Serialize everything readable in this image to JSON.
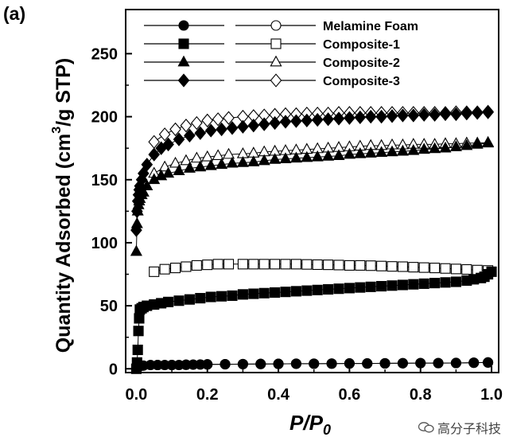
{
  "panel_label": "(a)",
  "watermark": "高分子科技",
  "chart_data": {
    "type": "scatter",
    "xlabel": "P/P",
    "xlabel_sub": "0",
    "ylabel": "Quantity Adsorbed (cm",
    "ylabel_sup": "3",
    "ylabel_tail": "/g STP)",
    "xlim": [
      -0.03,
      1.02
    ],
    "ylim": [
      -3,
      285
    ],
    "xticks": [
      0.0,
      0.2,
      0.4,
      0.6,
      0.8,
      1.0
    ],
    "xtick_labels": [
      "0.0",
      "0.2",
      "0.4",
      "0.6",
      "0.8",
      "1.0"
    ],
    "yticks": [
      0,
      50,
      100,
      150,
      200,
      250
    ],
    "ytick_labels": [
      "0",
      "50",
      "100",
      "150",
      "200",
      "250"
    ],
    "grid": false,
    "legend_position": "top-right",
    "series": [
      {
        "name": "Melamine Foam",
        "marker": "circle",
        "adsorption_x": [
          0.002,
          0.01,
          0.02,
          0.04,
          0.06,
          0.08,
          0.1,
          0.12,
          0.14,
          0.16,
          0.18,
          0.2,
          0.25,
          0.3,
          0.35,
          0.4,
          0.45,
          0.5,
          0.55,
          0.6,
          0.65,
          0.7,
          0.75,
          0.8,
          0.85,
          0.9,
          0.95,
          0.99
        ],
        "adsorption_y": [
          1,
          2,
          2.5,
          3,
          3,
          3,
          3,
          3,
          3.2,
          3.3,
          3.4,
          3.5,
          3.6,
          3.7,
          3.8,
          3.9,
          4,
          4,
          4.1,
          4.2,
          4.2,
          4.3,
          4.4,
          4.5,
          4.5,
          4.6,
          4.8,
          5
        ],
        "desorption_x": [
          0.06,
          0.1,
          0.14,
          0.2,
          0.25,
          0.3,
          0.35,
          0.4,
          0.45,
          0.5,
          0.55,
          0.6,
          0.65,
          0.7,
          0.75,
          0.8,
          0.85,
          0.9,
          0.95,
          0.99
        ],
        "desorption_y": [
          3,
          3,
          3.2,
          3.5,
          3.6,
          3.7,
          3.8,
          3.9,
          4,
          4,
          4.1,
          4.2,
          4.2,
          4.3,
          4.4,
          4.5,
          4.5,
          4.6,
          4.8,
          5
        ]
      },
      {
        "name": "Composite-1",
        "marker": "square",
        "adsorption_x": [
          0.0,
          0.002,
          0.004,
          0.006,
          0.008,
          0.01,
          0.015,
          0.02,
          0.03,
          0.05,
          0.07,
          0.09,
          0.12,
          0.15,
          0.18,
          0.21,
          0.24,
          0.27,
          0.3,
          0.33,
          0.36,
          0.39,
          0.42,
          0.45,
          0.48,
          0.51,
          0.54,
          0.57,
          0.6,
          0.63,
          0.66,
          0.69,
          0.72,
          0.75,
          0.78,
          0.81,
          0.84,
          0.87,
          0.9,
          0.93,
          0.95,
          0.97,
          0.98,
          0.99,
          1.0
        ],
        "adsorption_y": [
          0,
          5,
          15,
          30,
          40,
          47,
          48,
          49,
          50,
          51,
          52,
          53,
          54,
          55,
          56,
          57,
          57.5,
          58,
          59,
          59.5,
          60,
          60.5,
          61,
          61.5,
          62,
          62.5,
          63,
          63.5,
          64,
          64.5,
          65,
          65.5,
          66,
          66.5,
          67,
          67.5,
          68,
          68.5,
          69,
          70,
          71,
          72,
          73,
          75,
          77
        ],
        "desorption_x": [
          0.05,
          0.08,
          0.11,
          0.14,
          0.17,
          0.2,
          0.23,
          0.26,
          0.3,
          0.33,
          0.36,
          0.39,
          0.42,
          0.45,
          0.48,
          0.51,
          0.54,
          0.57,
          0.6,
          0.63,
          0.66,
          0.69,
          0.72,
          0.75,
          0.78,
          0.81,
          0.84,
          0.87,
          0.9,
          0.93,
          0.96,
          0.99
        ],
        "desorption_y": [
          77,
          79,
          80,
          81,
          82,
          82.5,
          83,
          83,
          83,
          83,
          83,
          83,
          83,
          83,
          82.8,
          82.6,
          82.5,
          82.3,
          82,
          82,
          81.8,
          81.5,
          81.2,
          81,
          80.6,
          80.3,
          80,
          79.6,
          79.2,
          78.8,
          78.3,
          78
        ]
      },
      {
        "name": "Composite-2",
        "marker": "triangle",
        "adsorption_x": [
          0.0,
          0.002,
          0.004,
          0.006,
          0.008,
          0.01,
          0.015,
          0.02,
          0.03,
          0.05,
          0.07,
          0.09,
          0.12,
          0.15,
          0.18,
          0.21,
          0.24,
          0.27,
          0.3,
          0.33,
          0.36,
          0.39,
          0.42,
          0.45,
          0.48,
          0.51,
          0.54,
          0.57,
          0.6,
          0.63,
          0.66,
          0.69,
          0.72,
          0.75,
          0.78,
          0.81,
          0.84,
          0.87,
          0.9,
          0.93,
          0.96,
          0.99
        ],
        "adsorption_y": [
          93,
          115,
          125,
          130,
          133,
          135,
          138,
          140,
          145,
          150,
          153,
          155,
          157,
          159,
          160,
          161,
          162,
          163,
          163.5,
          164,
          165,
          166,
          166.5,
          167,
          167.5,
          168,
          168.5,
          169,
          170,
          170.5,
          171,
          171.5,
          172,
          172.5,
          173,
          174,
          174.5,
          175,
          176,
          177,
          178,
          179
        ],
        "desorption_x": [
          0.05,
          0.08,
          0.11,
          0.14,
          0.17,
          0.2,
          0.23,
          0.26,
          0.3,
          0.33,
          0.36,
          0.39,
          0.42,
          0.45,
          0.48,
          0.51,
          0.54,
          0.57,
          0.6,
          0.63,
          0.66,
          0.69,
          0.72,
          0.75,
          0.78,
          0.81,
          0.84,
          0.87,
          0.9,
          0.93,
          0.96,
          0.99
        ],
        "desorption_y": [
          155,
          160,
          163,
          165,
          167,
          168,
          169,
          170,
          170.5,
          171,
          172,
          172.5,
          173,
          173.5,
          174,
          174.5,
          175,
          175.5,
          176,
          176.5,
          177,
          177,
          177.5,
          177.5,
          178,
          178,
          178,
          178.5,
          178.5,
          179,
          179,
          179.5
        ]
      },
      {
        "name": "Composite-3",
        "marker": "diamond",
        "adsorption_x": [
          0.0,
          0.002,
          0.004,
          0.006,
          0.008,
          0.01,
          0.015,
          0.02,
          0.03,
          0.05,
          0.07,
          0.09,
          0.12,
          0.15,
          0.18,
          0.21,
          0.24,
          0.27,
          0.3,
          0.33,
          0.36,
          0.39,
          0.42,
          0.45,
          0.48,
          0.51,
          0.54,
          0.57,
          0.6,
          0.63,
          0.66,
          0.69,
          0.72,
          0.75,
          0.78,
          0.81,
          0.84,
          0.87,
          0.9,
          0.93,
          0.96,
          0.99
        ],
        "adsorption_y": [
          110,
          125,
          133,
          138,
          142,
          145,
          150,
          155,
          162,
          170,
          175,
          178,
          182,
          185,
          187,
          189,
          190,
          191,
          192,
          193,
          194,
          195,
          196,
          196.5,
          197,
          197.5,
          198,
          198.5,
          199,
          199.5,
          200,
          200,
          200.5,
          201,
          201,
          201.5,
          201.5,
          202,
          202,
          202.5,
          203,
          203.5
        ],
        "desorption_x": [
          0.05,
          0.08,
          0.11,
          0.14,
          0.17,
          0.2,
          0.23,
          0.26,
          0.3,
          0.33,
          0.36,
          0.39,
          0.42,
          0.45,
          0.48,
          0.51,
          0.54,
          0.57,
          0.6,
          0.63,
          0.66,
          0.69,
          0.72,
          0.75,
          0.78,
          0.81,
          0.84,
          0.87,
          0.9,
          0.93,
          0.96,
          0.99
        ],
        "desorption_y": [
          180,
          186,
          190,
          193,
          195,
          197,
          198,
          199,
          200,
          200.5,
          201,
          201.5,
          202,
          202,
          202.5,
          202.5,
          202.5,
          203,
          203,
          203,
          203,
          203,
          203,
          203,
          203,
          203,
          203,
          203,
          203.5,
          203.5,
          203.5,
          204
        ]
      }
    ]
  }
}
